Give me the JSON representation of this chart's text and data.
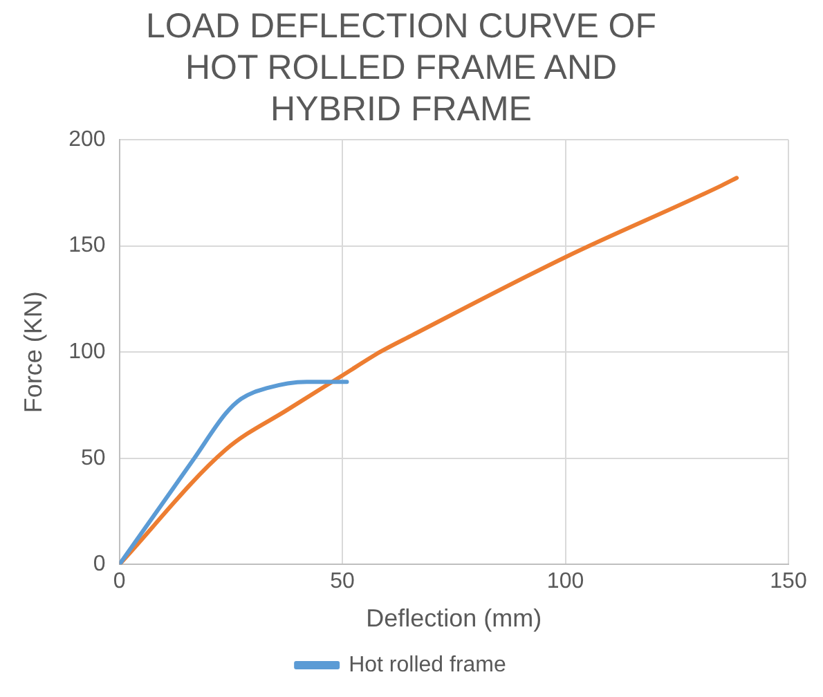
{
  "chart_data": {
    "type": "line",
    "title": "LOAD DEFLECTION CURVE OF HOT ROLLED FRAME AND HYBRID FRAME",
    "xlabel": "Deflection (mm)",
    "ylabel": "Force (KN)",
    "xlim": [
      0,
      150
    ],
    "xticks": [
      0,
      50,
      100,
      150
    ],
    "ylim": [
      0,
      200
    ],
    "yticks": [
      0,
      50,
      100,
      150,
      200
    ],
    "grid": true,
    "legend": "bottom",
    "marker": "none",
    "series": [
      {
        "name": "Hot rolled frame",
        "color": "#5b9bd5",
        "x": [
          0,
          16.8,
          23.8,
          27.3,
          33,
          42,
          51
        ],
        "values": [
          0,
          50,
          71,
          78,
          83,
          86,
          86
        ]
      },
      {
        "color": "#ed7d31",
        "x": [
          0,
          23.8,
          37.8,
          50,
          58.4,
          65.7,
          100.3,
          134.6,
          138.4
        ],
        "values": [
          0,
          54,
          73,
          89,
          100,
          108,
          145,
          178,
          182
        ]
      }
    ]
  }
}
